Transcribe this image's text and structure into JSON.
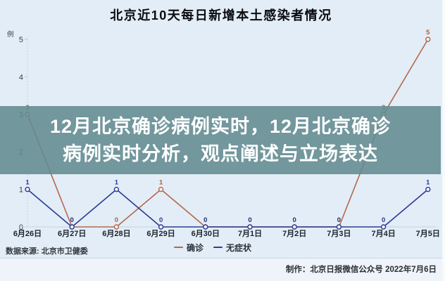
{
  "title": "北京近10天每日新增本土感染者情况",
  "overlay": {
    "line1": "12月北京确诊病例实时，12月北京确诊",
    "line2": "病例实时分析，观点阐述与立场表达"
  },
  "source": "数据来源: 北京市卫健委",
  "credit": "制作：北京日报微信公众号  2022年7月6日",
  "colors": {
    "background": "#e2edf7",
    "banner": "#6f9aa0",
    "confirmed": "#b5694b",
    "confirmed_label": "#bd5c31",
    "asymptomatic": "#2c3b92",
    "axis": "#c3d5e5"
  },
  "chart_data": {
    "type": "line",
    "title": "北京近10天每日新增本土感染者情况",
    "categories": [
      "6月26日",
      "6月27日",
      "6月28日",
      "6月29日",
      "6月30日",
      "7月1日",
      "7月2日",
      "7月3日",
      "7月4日",
      "7月5日"
    ],
    "series": [
      {
        "name": "确诊",
        "color": "#b5694b",
        "label_color": "#bd5c31",
        "values": [
          3,
          0,
          0,
          1,
          0,
          0,
          0,
          0,
          3,
          5
        ]
      },
      {
        "name": "无症状",
        "color": "#2c3b92",
        "label_color": "#2c3b92",
        "values": [
          1,
          0,
          1,
          0,
          0,
          0,
          0,
          0,
          0,
          1
        ]
      }
    ],
    "xlabel": "",
    "ylabel": "例",
    "ylim": [
      0,
      5
    ],
    "yticks": [
      0,
      1,
      2,
      3,
      4,
      5
    ],
    "grid": false,
    "markers": "open-circle",
    "point_labels": true,
    "legend_position": "bottom"
  }
}
